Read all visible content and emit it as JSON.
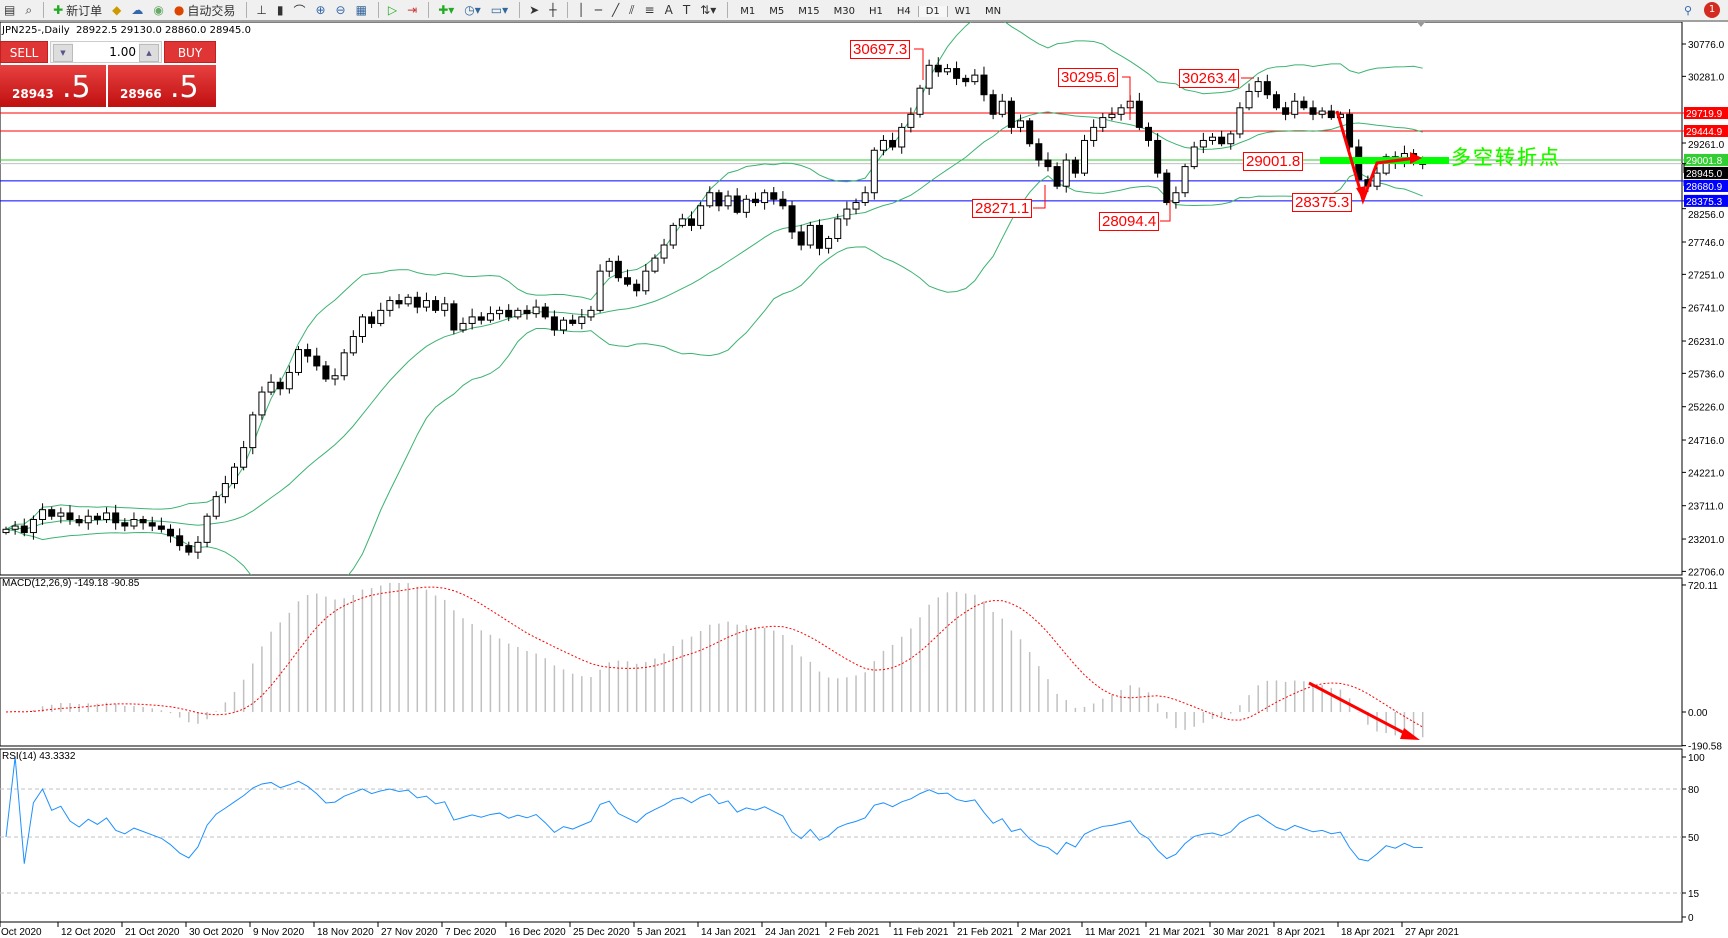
{
  "toolbar": {
    "new_order_label": "新订单",
    "auto_trading_label": "自动交易",
    "timeframes": [
      "M1",
      "M5",
      "M15",
      "M30",
      "H1",
      "H4",
      "D1",
      "W1",
      "MN"
    ],
    "active_timeframe": "D1",
    "notification_count": "1"
  },
  "chart_header": {
    "title": "JPN225-,Daily  28922.5 29130.0 28860.0 28945.0"
  },
  "trade_panel": {
    "sell_label": "SELL",
    "buy_label": "BUY",
    "lot_value": "1.00",
    "sell_price_main": "28943",
    "sell_price_tail": ".5",
    "buy_price_main": "28966",
    "buy_price_tail": ".5"
  },
  "annotations": {
    "high_1": "30697.3",
    "high_2": "30295.6",
    "high_3": "30263.4",
    "low_1": "28271.1",
    "low_2": "28094.4",
    "low_3": "28375.3",
    "pivot_level": "29001.8",
    "pivot_text": "多空转折点"
  },
  "colors": {
    "resistance": "#ff0000",
    "support": "#0000ff",
    "pivot": "#00ff00",
    "bollinger": "#3cb371",
    "macd_histogram": "#c0c0c0",
    "macd_signal": "#ff0000",
    "rsi": "#1e90ff"
  },
  "chart_data": {
    "type": "candlestick",
    "symbol": "JPN225-",
    "timeframe": "Daily",
    "price_axis_ticks": [
      "30776.0",
      "30281.0",
      "29261.0",
      "28256.0",
      "27746.0",
      "27251.0",
      "26741.0",
      "26231.0",
      "25736.0",
      "25226.0",
      "24716.0",
      "24221.0",
      "23711.0",
      "23201.0",
      "22706.0"
    ],
    "price_range": [
      22706,
      30776
    ],
    "horizontal_lines": [
      {
        "price": 29719.9,
        "label": "29719.9",
        "color": "#ff0000"
      },
      {
        "price": 29444.9,
        "label": "29444.9",
        "color": "#ff0000"
      },
      {
        "price": 29001.8,
        "label": "29001.8",
        "color": "#32cd32"
      },
      {
        "price": 28945.0,
        "label": "28945.0",
        "color": "#000000"
      },
      {
        "price": 28680.9,
        "label": "28680.9",
        "color": "#0000ff"
      },
      {
        "price": 28375.3,
        "label": "28375.3",
        "color": "#0000ff"
      }
    ],
    "date_labels": [
      "Oct 2020",
      "12 Oct 2020",
      "21 Oct 2020",
      "30 Oct 2020",
      "9 Nov 2020",
      "18 Nov 2020",
      "27 Nov 2020",
      "7 Dec 2020",
      "16 Dec 2020",
      "25 Dec 2020",
      "5 Jan 2021",
      "14 Jan 2021",
      "24 Jan 2021",
      "2 Feb 2021",
      "11 Feb 2021",
      "21 Feb 2021",
      "2 Mar 2021",
      "11 Mar 2021",
      "21 Mar 2021",
      "30 Mar 2021",
      "8 Apr 2021",
      "18 Apr 2021",
      "27 Apr 2021"
    ],
    "closes": [
      23350,
      23400,
      23300,
      23500,
      23650,
      23550,
      23600,
      23500,
      23450,
      23550,
      23500,
      23600,
      23450,
      23400,
      23500,
      23450,
      23400,
      23350,
      23250,
      23100,
      23000,
      23150,
      23550,
      23850,
      24050,
      24300,
      24600,
      25100,
      25450,
      25600,
      25500,
      25750,
      26100,
      26000,
      25850,
      25650,
      25700,
      26050,
      26300,
      26600,
      26500,
      26700,
      26850,
      26800,
      26900,
      26750,
      26850,
      26700,
      26800,
      26400,
      26500,
      26600,
      26550,
      26650,
      26700,
      26600,
      26700,
      26650,
      26750,
      26600,
      26400,
      26550,
      26500,
      26600,
      26700,
      27300,
      27450,
      27200,
      27100,
      27000,
      27300,
      27500,
      27700,
      28000,
      28100,
      28000,
      28300,
      28500,
      28300,
      28450,
      28200,
      28400,
      28350,
      28500,
      28400,
      28300,
      27900,
      27700,
      28000,
      27650,
      27800,
      28100,
      28250,
      28350,
      28500,
      29150,
      29300,
      29200,
      29500,
      29700,
      30100,
      30450,
      30350,
      30400,
      30250,
      30200,
      30300,
      30000,
      29700,
      29900,
      29500,
      29600,
      29250,
      29000,
      28900,
      28600,
      29000,
      28800,
      29300,
      29500,
      29650,
      29700,
      29800,
      29900,
      29500,
      29300,
      28800,
      28350,
      28500,
      28900,
      29200,
      29300,
      29350,
      29250,
      29400,
      29800,
      30050,
      30200,
      30000,
      29800,
      29700,
      29900,
      29800,
      29700,
      29750,
      29650,
      29700,
      29200,
      28700,
      28600,
      28800,
      29050,
      28950,
      29100,
      28950,
      28945
    ],
    "indicators": {
      "bollinger": "20,2",
      "macd": {
        "label": "MACD(12,26,9) -149.18 -90.85",
        "axis_ticks": [
          "720.11",
          "0.00",
          "-190.58"
        ]
      },
      "rsi": {
        "label": "RSI(14) 43.3332",
        "axis_ticks": [
          "100",
          "80",
          "50",
          "15",
          "0"
        ],
        "levels": [
          80,
          50,
          15
        ]
      }
    }
  }
}
